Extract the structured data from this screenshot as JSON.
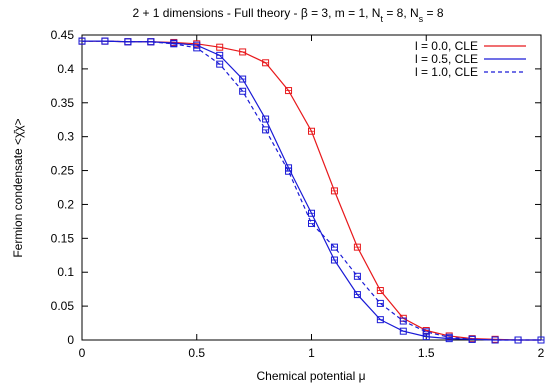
{
  "chart_data": {
    "type": "line",
    "title": "2 + 1 dimensions - Full theory - β = 3, m = 1, N_t = 8, N_s = 8",
    "title_parts": {
      "prefix": "2 + 1 dimensions - Full theory - β = 3, m = 1, N",
      "sub1": "t",
      "mid": " = 8, N",
      "sub2": "s",
      "suffix": " = 8"
    },
    "xlabel": "Chemical potential μ",
    "ylabel": "Fermion condensate <χ̄χ>",
    "xlim": [
      0,
      2
    ],
    "ylim": [
      0,
      0.45
    ],
    "xticks": [
      0,
      0.5,
      1,
      1.5,
      2
    ],
    "xtick_labels": [
      "0",
      "0.5",
      "1",
      "1.5",
      "2"
    ],
    "yticks": [
      0,
      0.05,
      0.1,
      0.15,
      0.2,
      0.25,
      0.3,
      0.35,
      0.4,
      0.45
    ],
    "ytick_labels": [
      "0",
      "0.05",
      "0.1",
      "0.15",
      "0.2",
      "0.25",
      "0.3",
      "0.35",
      "0.4",
      "0.45"
    ],
    "grid": false,
    "legend_position": "top-right",
    "x": [
      0,
      0.1,
      0.2,
      0.3,
      0.4,
      0.5,
      0.6,
      0.7,
      0.8,
      0.9,
      1.0,
      1.1,
      1.2,
      1.3,
      1.4,
      1.5,
      1.6,
      1.7,
      1.8,
      1.9,
      2.0
    ],
    "series": [
      {
        "name": "l = 0.0, CLE",
        "color": "#e8191c",
        "dash": "solid",
        "values": [
          0.441,
          0.441,
          0.44,
          0.44,
          0.439,
          0.437,
          0.432,
          0.425,
          0.409,
          0.368,
          0.308,
          0.22,
          0.137,
          0.073,
          0.032,
          0.014,
          0.006,
          0.002,
          0.001,
          0.0,
          0.0
        ]
      },
      {
        "name": "l = 0.5, CLE",
        "color": "#1a1ad6",
        "dash": "solid",
        "values": [
          0.441,
          0.441,
          0.44,
          0.44,
          0.438,
          0.435,
          0.42,
          0.385,
          0.326,
          0.254,
          0.187,
          0.118,
          0.067,
          0.03,
          0.013,
          0.005,
          0.002,
          0.001,
          0.0,
          0.0,
          0.0
        ]
      },
      {
        "name": "l = 1.0, CLE",
        "color": "#1a1ad6",
        "dash": "dashed",
        "values": [
          0.441,
          0.441,
          0.44,
          0.44,
          0.437,
          0.431,
          0.407,
          0.367,
          0.31,
          0.249,
          0.172,
          0.137,
          0.094,
          0.054,
          0.028,
          0.012,
          0.004,
          0.001,
          0.0,
          0.0,
          0.0
        ]
      }
    ]
  }
}
